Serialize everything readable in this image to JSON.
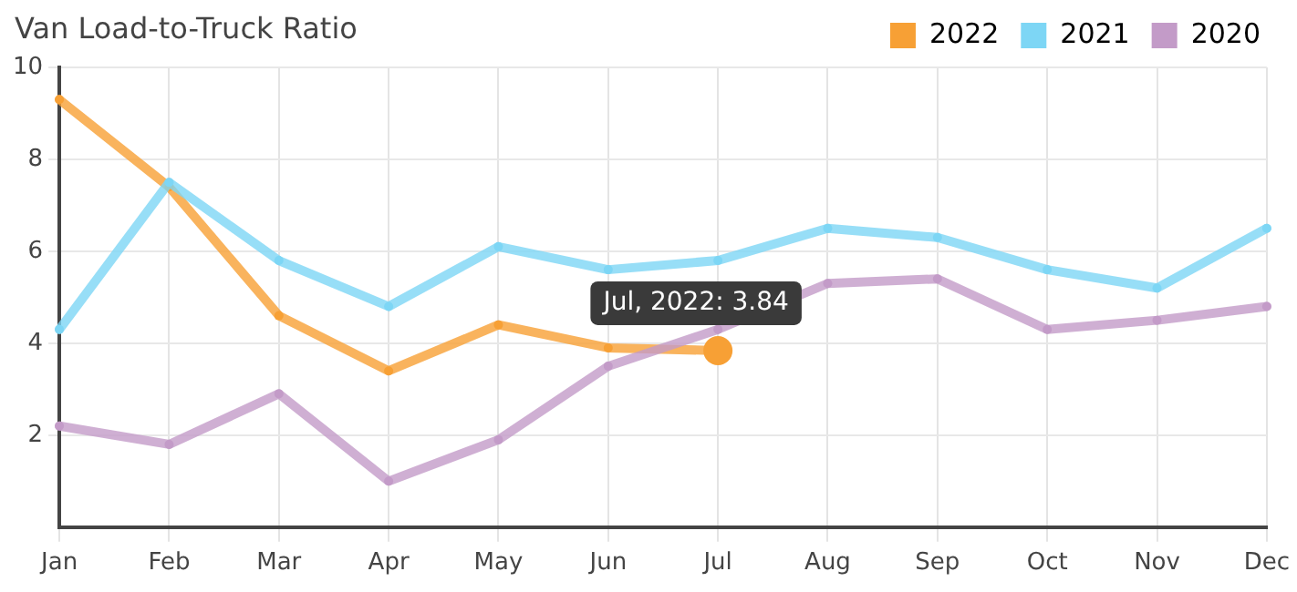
{
  "chart_data": {
    "type": "line",
    "title": "Van Load-to-Truck Ratio",
    "categories": [
      "Jan",
      "Feb",
      "Mar",
      "Apr",
      "May",
      "Jun",
      "Jul",
      "Aug",
      "Sep",
      "Oct",
      "Nov",
      "Dec"
    ],
    "series": [
      {
        "name": "2022",
        "color": "#f7a035",
        "values": [
          9.3,
          7.4,
          4.6,
          3.4,
          4.4,
          3.9,
          3.84,
          null,
          null,
          null,
          null,
          null
        ]
      },
      {
        "name": "2021",
        "color": "#7dd6f5",
        "values": [
          4.3,
          7.5,
          5.8,
          4.8,
          6.1,
          5.6,
          5.8,
          6.5,
          6.3,
          5.6,
          5.2,
          6.5
        ]
      },
      {
        "name": "2020",
        "color": "#c39bc8",
        "values": [
          2.2,
          1.8,
          2.9,
          1.0,
          1.9,
          3.5,
          4.3,
          5.3,
          5.4,
          4.3,
          4.5,
          4.8
        ]
      }
    ],
    "ylim": [
      0,
      10
    ],
    "yticks": [
      2,
      4,
      6,
      8,
      10
    ],
    "grid": true,
    "legend": "top right",
    "marker": "circle",
    "line_style": "solid",
    "annotations": [
      {
        "text": "Jul, 2022: 3.84",
        "x": "Jul",
        "y": 3.84
      }
    ]
  }
}
